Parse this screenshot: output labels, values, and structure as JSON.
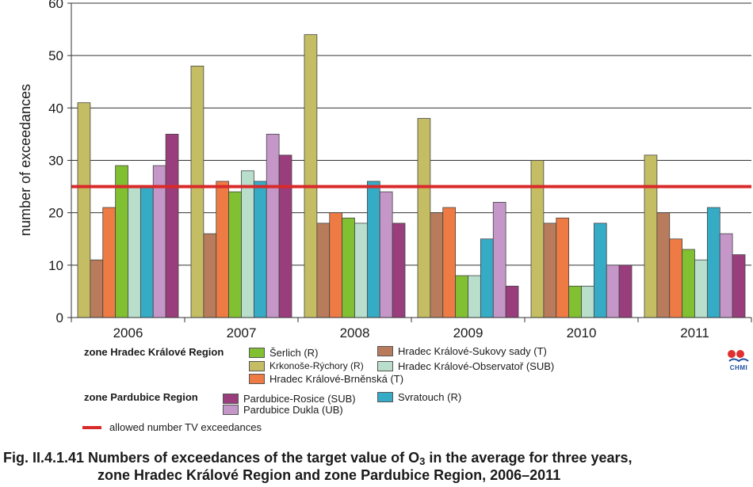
{
  "chart_data": {
    "type": "bar",
    "categories": [
      "2006",
      "2007",
      "2008",
      "2009",
      "2010",
      "2011"
    ],
    "ylabel": "number of exceedances",
    "ylim": [
      0,
      60
    ],
    "yticks": [
      0,
      10,
      20,
      30,
      40,
      50,
      60
    ],
    "grid": "horizontal",
    "series": [
      {
        "name": "Krkonoše-Rýchory (R)",
        "color": "#c5bd63",
        "values": [
          41,
          48,
          54,
          38,
          30,
          31
        ]
      },
      {
        "name": "Hradec Králové-Sukovy sady (T)",
        "color": "#b87c5c",
        "values": [
          11,
          16,
          18,
          20,
          18,
          20
        ]
      },
      {
        "name": "Hradec Králové-Brněnská (T)",
        "color": "#ee7b43",
        "values": [
          21,
          26,
          20,
          21,
          19,
          15
        ]
      },
      {
        "name": "Šerlich (R)",
        "color": "#80c031",
        "values": [
          29,
          24,
          19,
          8,
          6,
          13
        ]
      },
      {
        "name": "Hradec Králové-Observatoř (SUB)",
        "color": "#b9decb",
        "values": [
          25,
          28,
          18,
          8,
          6,
          11
        ]
      },
      {
        "name": "Svratouch (R)",
        "color": "#36abc6",
        "values": [
          25,
          26,
          26,
          15,
          18,
          21
        ]
      },
      {
        "name": "Pardubice Dukla (UB)",
        "color": "#c497c8",
        "values": [
          29,
          35,
          24,
          22,
          10,
          16
        ]
      },
      {
        "name": "Pardubice-Rosice (SUB)",
        "color": "#9a3d7c",
        "values": [
          35,
          31,
          18,
          6,
          10,
          12
        ]
      }
    ],
    "threshold": {
      "value": 25,
      "name": "allowed number TV exceedances",
      "color": "#d92a2a"
    }
  },
  "legend": {
    "group_hk": "zone Hradec Králové Region",
    "group_pa": "zone Pardubice Region",
    "items": [
      {
        "label": "Šerlich (R)",
        "color": "#80c031"
      },
      {
        "label": "Krkonoše-Rýchory (R)",
        "color": "#c5bd63"
      },
      {
        "label": "Hradec Králové-Sukovy sady (T)",
        "color": "#b87c5c"
      },
      {
        "label": "Hradec Králové-Observatoř (SUB)",
        "color": "#b9decb"
      },
      {
        "label": "Hradec Králové-Brněnská (T)",
        "color": "#ee7b43"
      },
      {
        "label": "Pardubice-Rosice (SUB)",
        "color": "#9a3d7c"
      },
      {
        "label": "Svratouch (R)",
        "color": "#36abc6"
      },
      {
        "label": "Pardubice Dukla (UB)",
        "color": "#c497c8"
      }
    ],
    "threshold_label": "allowed number TV exceedances"
  },
  "logo": {
    "text": "CHMI",
    "colors": [
      "#e03030",
      "#1f4fa0"
    ]
  },
  "caption": {
    "line1_prefix": "Fig. II.4.1.41  Numbers of exceedances of the target value of O",
    "line1_sub": "3",
    "line1_suffix": " in the average for three years,",
    "line2": "zone Hradec Králové Region and zone Pardubice Region, 2006–2011"
  }
}
